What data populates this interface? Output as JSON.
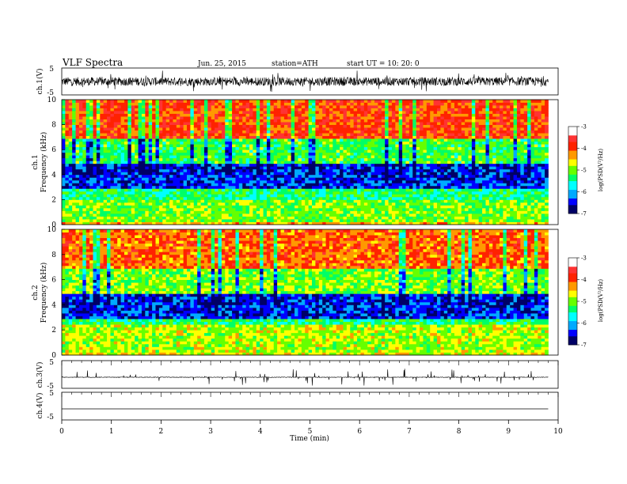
{
  "header": {
    "title": "VLF  Spectra",
    "date": "Jun. 25, 2015",
    "station": "station=ATH",
    "start": "start  UT =   10: 20: 0"
  },
  "colors": {
    "ch1_trace": "#000000",
    "ch3_trace": "#000000",
    "ch4_trace": "#000000",
    "colormap": [
      "#000066",
      "#0000ff",
      "#00aaff",
      "#00ffff",
      "#00ff66",
      "#66ff00",
      "#ffff00",
      "#ff9900",
      "#ff2200",
      "#ff3333",
      "#ffffff"
    ]
  },
  "chart_data": [
    {
      "id": "ch1_waveform",
      "type": "line",
      "ylabel": "ch.1(V)",
      "yticks": [
        "5",
        "-5"
      ],
      "ylim": [
        -5,
        5
      ],
      "xlim": [
        0,
        10
      ],
      "series": [
        {
          "x_range": [
            0,
            9.8
          ],
          "baseline": 0,
          "amplitude": 1.6
        }
      ]
    },
    {
      "id": "ch1_spectrogram",
      "type": "heatmap",
      "ylabel_channel": "ch.1",
      "ylabel": "Frequency  (kHz)",
      "yticks": [
        "0",
        "2",
        "4",
        "6",
        "8",
        "10"
      ],
      "ylim": [
        0,
        10
      ],
      "xlim": [
        0,
        10
      ],
      "data_xlim": [
        0,
        9.8
      ],
      "colorbar": {
        "label": "log(PSD(V²/Hz)",
        "ticks": [
          "-3",
          "-4",
          "-5",
          "-6",
          "-7"
        ],
        "range": [
          -7,
          -3
        ]
      },
      "bands": [
        {
          "f": [
            0,
            0.3
          ],
          "level": 0.7
        },
        {
          "f": [
            0.3,
            2.0
          ],
          "level": 0.55
        },
        {
          "f": [
            2.0,
            3.0
          ],
          "level": 0.45
        },
        {
          "f": [
            3.0,
            5.0
          ],
          "level": 0.15
        },
        {
          "f": [
            5.0,
            7.0
          ],
          "level": 0.5
        },
        {
          "f": [
            7.0,
            10.0
          ],
          "level": 0.85
        }
      ]
    },
    {
      "id": "ch2_spectrogram",
      "type": "heatmap",
      "ylabel_channel": "ch.2",
      "ylabel": "Frequency  (kHz)",
      "yticks": [
        "0",
        "2",
        "4",
        "6",
        "8",
        "10"
      ],
      "ylim": [
        0,
        10
      ],
      "xlim": [
        0,
        10
      ],
      "data_xlim": [
        0,
        9.8
      ],
      "colorbar": {
        "label": "log(PSD(V²/Hz)",
        "ticks": [
          "-3",
          "-4",
          "-5",
          "-6",
          "-7"
        ],
        "range": [
          -7,
          -3
        ]
      },
      "bands": [
        {
          "f": [
            0,
            0.3
          ],
          "level": 0.65
        },
        {
          "f": [
            0.3,
            2.5
          ],
          "level": 0.6
        },
        {
          "f": [
            2.5,
            3.0
          ],
          "level": 0.45
        },
        {
          "f": [
            3.0,
            5.0
          ],
          "level": 0.15
        },
        {
          "f": [
            5.0,
            7.0
          ],
          "level": 0.55
        },
        {
          "f": [
            7.0,
            10.0
          ],
          "level": 0.8
        }
      ]
    },
    {
      "id": "ch3_waveform",
      "type": "line",
      "ylabel": "ch.3(V)",
      "yticks": [
        "5",
        "-5"
      ],
      "ylim": [
        -5,
        5
      ],
      "xlim": [
        0,
        10
      ],
      "series": [
        {
          "x_range": [
            0,
            9.8
          ],
          "baseline": -1,
          "amplitude": 0.1
        }
      ]
    },
    {
      "id": "ch4_waveform",
      "type": "line",
      "ylabel": "ch.4(V)",
      "yticks": [
        "5",
        "-5"
      ],
      "ylim": [
        -5,
        5
      ],
      "xlim": [
        0,
        10
      ],
      "xlabel": "Time  (min)",
      "xticks": [
        "0",
        "1",
        "2",
        "3",
        "4",
        "5",
        "6",
        "7",
        "8",
        "9",
        "10"
      ],
      "series": [
        {
          "x_range": [
            0,
            9.8
          ],
          "baseline": -1,
          "amplitude": 0
        }
      ]
    }
  ]
}
